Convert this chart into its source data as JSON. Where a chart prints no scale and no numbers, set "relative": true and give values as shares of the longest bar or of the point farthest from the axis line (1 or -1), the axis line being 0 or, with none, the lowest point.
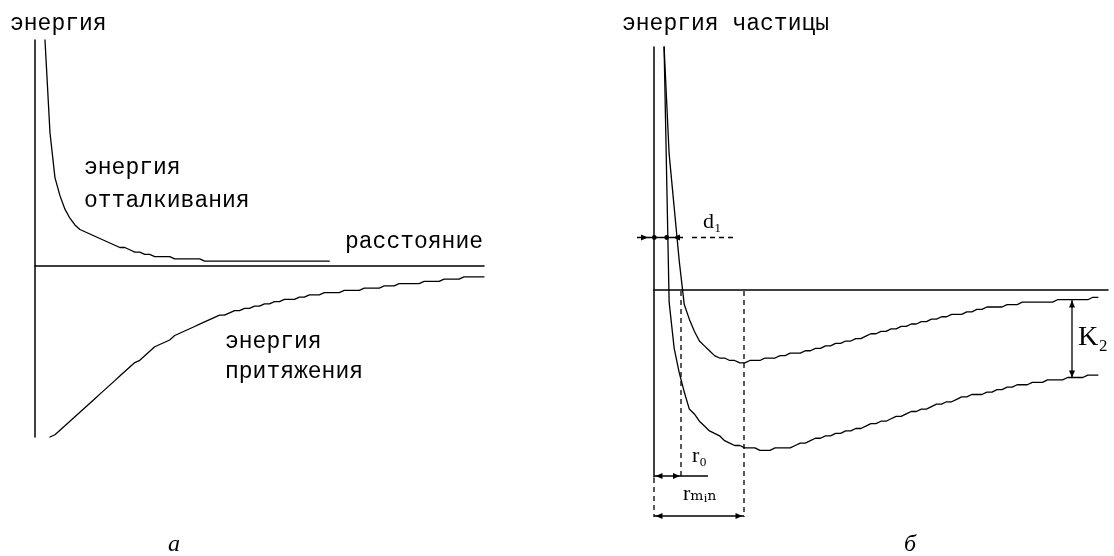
{
  "chart_data": [
    {
      "type": "line",
      "title": "а",
      "xlabel": "расстояние",
      "ylabel": "энергия",
      "relative": true,
      "categories": [
        null,
        null,
        null,
        null,
        null,
        null,
        null,
        null,
        null,
        null,
        null,
        null,
        null,
        null,
        null,
        null,
        null,
        null,
        null,
        null,
        null,
        null,
        null,
        null,
        null,
        null,
        null,
        null,
        null,
        null,
        null,
        null,
        null,
        null,
        null,
        null,
        null,
        null,
        null,
        null,
        null,
        null,
        null,
        null,
        null,
        null,
        null,
        null,
        null,
        null,
        null,
        null,
        null,
        null,
        null,
        null,
        null,
        null,
        null,
        null,
        null,
        null,
        null,
        null,
        null,
        null,
        null,
        null,
        null,
        null,
        null,
        null,
        null,
        null,
        null,
        null,
        null,
        null,
        null,
        null,
        null,
        null,
        null,
        null,
        null,
        null,
        null,
        null,
        null,
        null,
        null
      ],
      "series": [
        {
          "name": "энергия отталкивания",
          "color": "#000000",
          "values": [
            null,
            null,
            1,
            0.59,
            0.39,
            0.31,
            0.25,
            0.21,
            0.18,
            0.16,
            0.15,
            0.14,
            0.13,
            0.12,
            0.11,
            0.1,
            0.09,
            0.08,
            0.08,
            0.07,
            0.06,
            0.06,
            0.05,
            0.05,
            0.04,
            0.04,
            0.04,
            0.04,
            0.03,
            0.03,
            0.03,
            0.03,
            0.03,
            0.03,
            0.02,
            0.02,
            0.02,
            0.02,
            0.02,
            0.02,
            0.02,
            0.02,
            0.02,
            0.02,
            0.02,
            0.02,
            0.02,
            0.02,
            0.02,
            0.02,
            0.02,
            0.02,
            0.02,
            0.02,
            0.02,
            0.02,
            0.02,
            0.02,
            0.02,
            0.02,
            null,
            null,
            null,
            null,
            null,
            null,
            null,
            null,
            null,
            null,
            null,
            null,
            null,
            null,
            null,
            null,
            null,
            null,
            null,
            null,
            null,
            null,
            null,
            null,
            null,
            null,
            null,
            null,
            null,
            null,
            null
          ]
        },
        {
          "name": "энергия притяжения",
          "color": "#000000",
          "values": [
            null,
            null,
            null,
            -0.76,
            -0.75,
            -0.73,
            -0.71,
            -0.69,
            -0.67,
            -0.65,
            -0.63,
            -0.61,
            -0.59,
            -0.57,
            -0.55,
            -0.53,
            -0.51,
            -0.49,
            -0.47,
            -0.45,
            -0.43,
            -0.42,
            -0.4,
            -0.38,
            -0.36,
            -0.35,
            -0.34,
            -0.33,
            -0.31,
            -0.3,
            -0.29,
            -0.28,
            -0.27,
            -0.26,
            -0.25,
            -0.24,
            -0.23,
            -0.22,
            -0.22,
            -0.21,
            -0.2,
            -0.2,
            -0.19,
            -0.19,
            -0.18,
            -0.18,
            -0.17,
            -0.17,
            -0.16,
            -0.16,
            -0.15,
            -0.15,
            -0.15,
            -0.14,
            -0.14,
            -0.13,
            -0.13,
            -0.13,
            -0.12,
            -0.12,
            -0.12,
            -0.12,
            -0.11,
            -0.11,
            -0.11,
            -0.11,
            -0.1,
            -0.1,
            -0.1,
            -0.1,
            -0.09,
            -0.09,
            -0.09,
            -0.08,
            -0.08,
            -0.08,
            -0.08,
            -0.08,
            -0.07,
            -0.07,
            -0.07,
            -0.07,
            -0.06,
            -0.06,
            -0.06,
            -0.06,
            -0.05,
            -0.05,
            -0.05,
            -0.05,
            -0.05
          ]
        }
      ]
    },
    {
      "type": "line",
      "title": "б",
      "ylabel": "энергия частицы",
      "relative": true,
      "categories": [
        null,
        null,
        null,
        null,
        null,
        null,
        null,
        null,
        null,
        null,
        null,
        null,
        null,
        null,
        null,
        null,
        null,
        null,
        null,
        null,
        null,
        null,
        null,
        null,
        null,
        null,
        null,
        null,
        null,
        null,
        null,
        null,
        null,
        null,
        null,
        null,
        null,
        null,
        null,
        null,
        null,
        null,
        null,
        null,
        null,
        null,
        null,
        null,
        null,
        null,
        null,
        null,
        null,
        null,
        null,
        null,
        null,
        null,
        null,
        null,
        null,
        null,
        null,
        null,
        null,
        null,
        null,
        null,
        null,
        null,
        null,
        null,
        null,
        null,
        null,
        null,
        null,
        null,
        null,
        null,
        null,
        null,
        null,
        null,
        null,
        null,
        null,
        null,
        null,
        null,
        null
      ],
      "series": [
        {
          "color": "#000000",
          "values": [
            null,
            null,
            1,
            0.56,
            0.34,
            0.12,
            -0.06,
            -0.12,
            -0.17,
            -0.21,
            -0.23,
            -0.25,
            -0.27,
            -0.28,
            -0.28,
            -0.29,
            -0.29,
            -0.3,
            -0.3,
            -0.29,
            -0.29,
            -0.29,
            -0.28,
            -0.28,
            -0.28,
            -0.27,
            -0.27,
            -0.26,
            -0.26,
            -0.26,
            -0.25,
            -0.25,
            -0.24,
            -0.24,
            -0.23,
            -0.23,
            -0.22,
            -0.22,
            -0.21,
            -0.21,
            -0.2,
            -0.2,
            -0.19,
            -0.18,
            -0.18,
            -0.17,
            -0.17,
            -0.16,
            -0.16,
            -0.15,
            -0.15,
            -0.14,
            -0.14,
            -0.13,
            -0.13,
            -0.12,
            -0.12,
            -0.11,
            -0.11,
            -0.1,
            -0.1,
            -0.1,
            -0.09,
            -0.09,
            -0.08,
            -0.08,
            -0.07,
            -0.07,
            -0.07,
            -0.07,
            -0.06,
            -0.06,
            -0.06,
            -0.05,
            -0.05,
            -0.05,
            -0.05,
            -0.05,
            -0.05,
            -0.05,
            -0.04,
            -0.04,
            -0.04,
            -0.04,
            -0.04,
            -0.04,
            -0.04,
            -0.03,
            -0.03,
            null,
            null
          ]
        },
        {
          "color": "#000000",
          "values": [
            null,
            null,
            1,
            -0.05,
            -0.24,
            -0.34,
            -0.42,
            -0.49,
            -0.51,
            -0.54,
            -0.56,
            -0.58,
            -0.59,
            -0.6,
            -0.62,
            -0.63,
            -0.64,
            -0.64,
            -0.65,
            -0.65,
            -0.65,
            -0.66,
            -0.66,
            -0.66,
            -0.65,
            -0.65,
            -0.65,
            -0.65,
            -0.64,
            -0.63,
            -0.63,
            -0.62,
            -0.61,
            -0.61,
            -0.6,
            -0.6,
            -0.59,
            -0.59,
            -0.58,
            -0.58,
            -0.57,
            -0.57,
            -0.56,
            -0.55,
            -0.55,
            -0.54,
            -0.54,
            -0.53,
            -0.52,
            -0.52,
            -0.51,
            -0.5,
            -0.5,
            -0.49,
            -0.49,
            -0.48,
            -0.47,
            -0.47,
            -0.46,
            -0.46,
            -0.45,
            -0.44,
            -0.44,
            -0.43,
            -0.43,
            -0.43,
            -0.42,
            -0.42,
            -0.41,
            -0.41,
            -0.4,
            -0.4,
            -0.39,
            -0.39,
            -0.39,
            -0.38,
            -0.38,
            -0.38,
            -0.37,
            -0.37,
            -0.37,
            -0.37,
            -0.36,
            -0.36,
            -0.36,
            -0.36,
            -0.35,
            -0.35,
            -0.35,
            null,
            null
          ]
        }
      ],
      "annotations": [
        "d₁",
        "r₀",
        "rₘᵢₙ",
        "K₂"
      ]
    }
  ]
}
